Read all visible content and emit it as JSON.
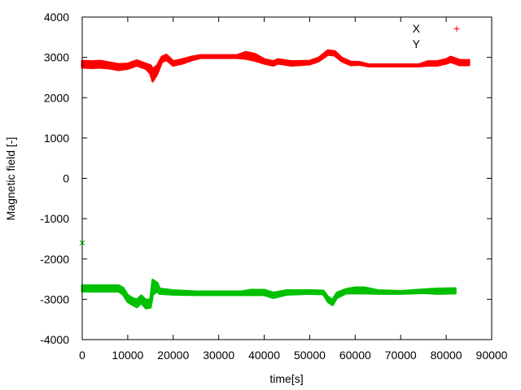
{
  "chart_data": {
    "type": "scatter",
    "title": "",
    "xlabel": "time[s]",
    "ylabel": "Magnetic field [-]",
    "xlim": [
      0,
      90000
    ],
    "ylim": [
      -4000,
      4000
    ],
    "xticks": [
      "0",
      "10000",
      "20000",
      "30000",
      "40000",
      "50000",
      "60000",
      "70000",
      "80000",
      "90000"
    ],
    "yticks": [
      "-4000",
      "-3000",
      "-2000",
      "-1000",
      "0",
      "1000",
      "2000",
      "3000",
      "4000"
    ],
    "grid": false,
    "legend_position": "top-right",
    "series": [
      {
        "name": "X",
        "color": "#ff0000",
        "marker": "+",
        "x": [
          0,
          2000,
          4000,
          6000,
          8000,
          10000,
          12000,
          14000,
          15000,
          15500,
          16500,
          17500,
          18500,
          20000,
          22000,
          24000,
          26000,
          30000,
          34000,
          36000,
          38000,
          40000,
          42000,
          43000,
          46000,
          50000,
          52000,
          54000,
          55500,
          57000,
          59000,
          61000,
          63000,
          70000,
          74000,
          76000,
          78000,
          80000,
          81000,
          83000,
          85000
        ],
        "y": [
          2830,
          2820,
          2830,
          2800,
          2760,
          2780,
          2860,
          2780,
          2700,
          2560,
          2700,
          2950,
          3000,
          2850,
          2900,
          2970,
          3020,
          3020,
          3020,
          3050,
          3000,
          2900,
          2850,
          2900,
          2850,
          2870,
          2950,
          3120,
          3100,
          2950,
          2850,
          2850,
          2800,
          2800,
          2800,
          2850,
          2850,
          2900,
          2950,
          2870,
          2870
        ],
        "spread": [
          80,
          80,
          80,
          70,
          70,
          60,
          60,
          60,
          100,
          150,
          100,
          60,
          60,
          50,
          50,
          40,
          30,
          30,
          30,
          80,
          80,
          50,
          50,
          50,
          50,
          40,
          40,
          50,
          50,
          40,
          40,
          30,
          20,
          20,
          20,
          50,
          50,
          50,
          60,
          60,
          60
        ]
      },
      {
        "name": "Y",
        "color": "#00c000",
        "marker": "x",
        "x": [
          0,
          8000,
          9000,
          10000,
          11000,
          12000,
          13000,
          14000,
          15000,
          15500,
          16500,
          17000,
          20000,
          25000,
          30000,
          35000,
          37000,
          40000,
          42000,
          45000,
          50000,
          53000,
          54000,
          55000,
          56000,
          58000,
          60000,
          62000,
          65000,
          70000,
          75000,
          78000,
          82000
        ],
        "y": [
          -2730,
          -2730,
          -2800,
          -2980,
          -3050,
          -3100,
          -3000,
          -3120,
          -3100,
          -2700,
          -2700,
          -2800,
          -2830,
          -2850,
          -2850,
          -2850,
          -2830,
          -2830,
          -2900,
          -2830,
          -2820,
          -2830,
          -3000,
          -3080,
          -2900,
          -2800,
          -2780,
          -2780,
          -2820,
          -2830,
          -2800,
          -2800,
          -2790
        ],
        "spread": [
          70,
          70,
          80,
          80,
          80,
          90,
          90,
          100,
          100,
          180,
          100,
          60,
          50,
          40,
          40,
          40,
          60,
          60,
          60,
          50,
          40,
          40,
          60,
          60,
          60,
          50,
          70,
          70,
          40,
          30,
          40,
          60,
          60
        ],
        "outliers": [
          {
            "x": 0,
            "y": -1600
          }
        ]
      }
    ]
  }
}
